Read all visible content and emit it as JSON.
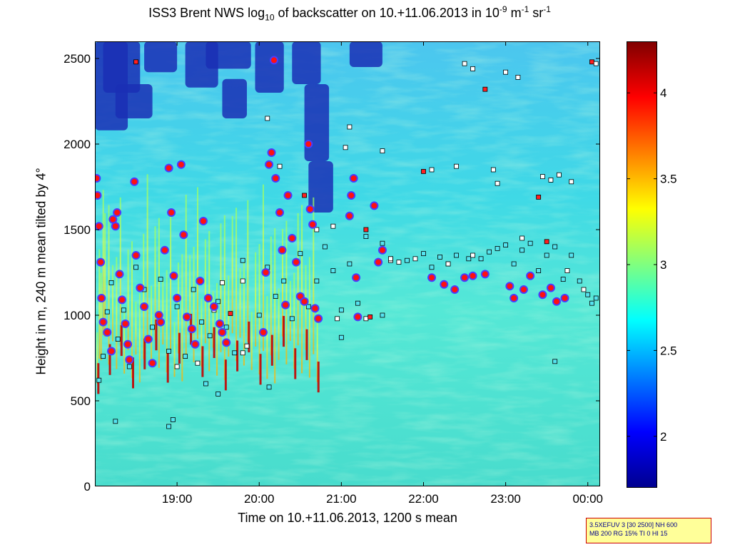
{
  "chart_data": {
    "type": "heatmap",
    "title_parts": {
      "prefix": "ISS3 Brent NWS log",
      "log_base": "10",
      "middle": " of backscatter on 10.+11.06.2013 in 10",
      "exp1": "-9",
      "unit1": " m",
      "exp2": "-1",
      "unit2": " sr",
      "exp3": "-1"
    },
    "xlabel": "Time on 10.+11.06.2013, 1200 s mean",
    "ylabel": "Height in m, 240 m mean tilted by 4°",
    "xlim_hours": [
      18.0,
      24.15
    ],
    "ylim": [
      0,
      2600
    ],
    "x_ticks": [
      {
        "value": 19,
        "label": "19:00"
      },
      {
        "value": 20,
        "label": "20:00"
      },
      {
        "value": 21,
        "label": "21:00"
      },
      {
        "value": 22,
        "label": "22:00"
      },
      {
        "value": 23,
        "label": "23:00"
      },
      {
        "value": 24,
        "label": "00:00"
      }
    ],
    "y_ticks": [
      0,
      500,
      1000,
      1500,
      2000,
      2500
    ],
    "colorbar": {
      "range": [
        1.7,
        4.3
      ],
      "ticks": [
        2,
        2.5,
        3,
        3.5,
        4
      ]
    },
    "cloud_base_series": [
      {
        "name": "primary cloud base (red dot)",
        "points": [
          [
            18.02,
            1800
          ],
          [
            18.03,
            1700
          ],
          [
            18.05,
            1520
          ],
          [
            18.07,
            1310
          ],
          [
            18.08,
            1100
          ],
          [
            18.1,
            960
          ],
          [
            18.15,
            900
          ],
          [
            18.2,
            790
          ],
          [
            18.22,
            1560
          ],
          [
            18.25,
            1520
          ],
          [
            18.27,
            1600
          ],
          [
            18.3,
            1240
          ],
          [
            18.33,
            1090
          ],
          [
            18.37,
            950
          ],
          [
            18.4,
            830
          ],
          [
            18.42,
            740
          ],
          [
            18.48,
            1780
          ],
          [
            18.5,
            1350
          ],
          [
            18.55,
            1160
          ],
          [
            18.6,
            1050
          ],
          [
            18.65,
            860
          ],
          [
            18.7,
            720
          ],
          [
            18.78,
            1000
          ],
          [
            18.8,
            960
          ],
          [
            18.85,
            1380
          ],
          [
            18.9,
            1860
          ],
          [
            18.93,
            1600
          ],
          [
            18.96,
            1230
          ],
          [
            19.0,
            1100
          ],
          [
            19.05,
            1880
          ],
          [
            19.08,
            1470
          ],
          [
            19.12,
            990
          ],
          [
            19.18,
            920
          ],
          [
            19.22,
            830
          ],
          [
            19.28,
            1200
          ],
          [
            19.32,
            1550
          ],
          [
            19.38,
            1100
          ],
          [
            19.45,
            1050
          ],
          [
            19.52,
            950
          ],
          [
            19.55,
            900
          ],
          [
            19.6,
            840
          ],
          [
            20.05,
            900
          ],
          [
            20.08,
            1250
          ],
          [
            20.12,
            1880
          ],
          [
            20.15,
            1950
          ],
          [
            20.18,
            2490
          ],
          [
            20.2,
            1800
          ],
          [
            20.25,
            1600
          ],
          [
            20.28,
            1380
          ],
          [
            20.32,
            1060
          ],
          [
            20.35,
            1700
          ],
          [
            20.4,
            1450
          ],
          [
            20.45,
            1310
          ],
          [
            20.5,
            1110
          ],
          [
            20.55,
            1080
          ],
          [
            20.6,
            2000
          ],
          [
            20.62,
            1620
          ],
          [
            20.65,
            1530
          ],
          [
            20.68,
            1040
          ],
          [
            20.72,
            980
          ],
          [
            21.1,
            1580
          ],
          [
            21.12,
            1700
          ],
          [
            21.15,
            1800
          ],
          [
            21.18,
            1220
          ],
          [
            21.2,
            990
          ],
          [
            21.4,
            1640
          ],
          [
            21.45,
            1310
          ],
          [
            21.5,
            1380
          ],
          [
            22.1,
            1220
          ],
          [
            22.25,
            1180
          ],
          [
            22.38,
            1150
          ],
          [
            22.5,
            1220
          ],
          [
            22.6,
            1230
          ],
          [
            22.75,
            1240
          ],
          [
            23.05,
            1170
          ],
          [
            23.1,
            1100
          ],
          [
            23.22,
            1150
          ],
          [
            23.3,
            1230
          ],
          [
            23.45,
            1120
          ],
          [
            23.55,
            1160
          ],
          [
            23.62,
            1080
          ],
          [
            23.72,
            1100
          ]
        ]
      },
      {
        "name": "secondary cloud base (cyan square)",
        "points": [
          [
            18.05,
            620
          ],
          [
            18.1,
            760
          ],
          [
            18.15,
            1020
          ],
          [
            18.2,
            1190
          ],
          [
            18.28,
            860
          ],
          [
            18.35,
            1030
          ],
          [
            18.42,
            700
          ],
          [
            18.5,
            1280
          ],
          [
            18.6,
            1150
          ],
          [
            18.7,
            930
          ],
          [
            18.8,
            1210
          ],
          [
            18.9,
            790
          ],
          [
            19.0,
            1050
          ],
          [
            19.1,
            760
          ],
          [
            19.2,
            1150
          ],
          [
            19.3,
            960
          ],
          [
            19.4,
            880
          ],
          [
            19.5,
            1080
          ],
          [
            19.6,
            930
          ],
          [
            19.7,
            780
          ],
          [
            19.8,
            1320
          ],
          [
            20.0,
            1000
          ],
          [
            20.1,
            1280
          ],
          [
            20.2,
            1110
          ],
          [
            20.3,
            1200
          ],
          [
            20.4,
            980
          ],
          [
            20.5,
            1360
          ],
          [
            20.6,
            1050
          ],
          [
            20.7,
            1200
          ],
          [
            20.8,
            1400
          ],
          [
            20.9,
            1260
          ],
          [
            21.0,
            1030
          ],
          [
            21.1,
            1300
          ],
          [
            21.2,
            1070
          ],
          [
            21.3,
            1460
          ],
          [
            21.5,
            1420
          ],
          [
            21.6,
            1330
          ],
          [
            21.8,
            1320
          ],
          [
            22.0,
            1360
          ],
          [
            22.1,
            1280
          ],
          [
            22.2,
            1340
          ],
          [
            22.3,
            1300
          ],
          [
            22.4,
            1350
          ],
          [
            22.55,
            1330
          ],
          [
            22.7,
            1330
          ],
          [
            22.8,
            1370
          ],
          [
            22.9,
            1390
          ],
          [
            23.0,
            1410
          ],
          [
            23.1,
            1300
          ],
          [
            23.2,
            1380
          ],
          [
            23.3,
            1420
          ],
          [
            23.4,
            1260
          ],
          [
            23.5,
            1350
          ],
          [
            23.6,
            1400
          ],
          [
            23.7,
            1210
          ],
          [
            23.8,
            1350
          ],
          [
            23.9,
            1200
          ],
          [
            24.0,
            1120
          ],
          [
            24.05,
            1070
          ],
          [
            24.1,
            1100
          ],
          [
            18.25,
            380
          ],
          [
            18.9,
            350
          ],
          [
            18.95,
            390
          ],
          [
            19.35,
            600
          ],
          [
            19.5,
            540
          ],
          [
            20.12,
            580
          ],
          [
            21.0,
            870
          ],
          [
            21.5,
            1000
          ],
          [
            23.6,
            730
          ]
        ]
      },
      {
        "name": "tertiary cloud base (black/white square)",
        "points": [
          [
            18.5,
            2480
          ],
          [
            19.55,
            1190
          ],
          [
            19.8,
            1200
          ],
          [
            20.1,
            2150
          ],
          [
            20.25,
            1870
          ],
          [
            20.55,
            1700
          ],
          [
            20.7,
            1500
          ],
          [
            20.9,
            1520
          ],
          [
            21.05,
            1980
          ],
          [
            21.1,
            2100
          ],
          [
            21.3,
            1500
          ],
          [
            21.5,
            1960
          ],
          [
            21.6,
            1320
          ],
          [
            21.7,
            1310
          ],
          [
            21.9,
            1330
          ],
          [
            22.0,
            1840
          ],
          [
            22.1,
            1850
          ],
          [
            22.4,
            1870
          ],
          [
            22.5,
            2470
          ],
          [
            22.6,
            2440
          ],
          [
            22.75,
            2320
          ],
          [
            22.85,
            1850
          ],
          [
            22.9,
            1770
          ],
          [
            23.0,
            2420
          ],
          [
            23.15,
            2390
          ],
          [
            23.4,
            1690
          ],
          [
            23.45,
            1810
          ],
          [
            23.55,
            1790
          ],
          [
            23.65,
            1820
          ],
          [
            23.8,
            1780
          ],
          [
            24.05,
            2480
          ],
          [
            24.1,
            2470
          ],
          [
            19.0,
            700
          ],
          [
            19.25,
            720
          ],
          [
            19.45,
            1030
          ],
          [
            19.65,
            1010
          ],
          [
            19.8,
            780
          ],
          [
            19.85,
            820
          ],
          [
            20.95,
            980
          ],
          [
            21.3,
            980
          ],
          [
            21.35,
            990
          ],
          [
            21.6,
            1330
          ],
          [
            22.3,
            1300
          ],
          [
            22.6,
            1350
          ],
          [
            23.2,
            1450
          ],
          [
            23.5,
            1430
          ],
          [
            23.75,
            1260
          ],
          [
            23.95,
            1150
          ]
        ]
      }
    ]
  },
  "info_box": {
    "line1": "3.5XEFUV 3 [30 2500] NH 600",
    "line2": "MB 200 RG 15% TI 0 HI 15"
  }
}
